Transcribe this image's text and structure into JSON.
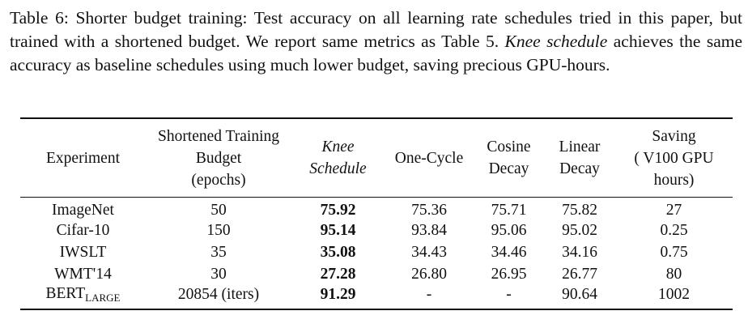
{
  "caption": {
    "label": "Table 6:",
    "before": "Shorter budget training: Test accuracy on all learning rate schedules tried in this paper, but trained with a shortened budget. We report same metrics as Table 5.",
    "emphasis": "Knee schedule",
    "after": "achieves the same accuracy as baseline schedules using much lower budget, saving precious GPU-hours."
  },
  "table": {
    "header": [
      [
        "Experiment"
      ],
      [
        "Shortened Training",
        "Budget",
        "(epochs)"
      ],
      [
        "Knee",
        "Schedule"
      ],
      [
        "One-Cycle"
      ],
      [
        "Cosine",
        "Decay"
      ],
      [
        "Linear",
        "Decay"
      ],
      [
        "Saving",
        "( V100 GPU",
        "hours)"
      ]
    ],
    "rows": [
      [
        "ImageNet",
        "50",
        "75.92",
        "75.36",
        "75.71",
        "75.82",
        "27"
      ],
      [
        "Cifar-10",
        "150",
        "95.14",
        "93.84",
        "95.06",
        "95.02",
        "0.25"
      ],
      [
        "IWSLT",
        "35",
        "35.08",
        "34.43",
        "34.46",
        "34.16",
        "0.75"
      ],
      [
        "WMT'14",
        "30",
        "27.28",
        "26.80",
        "26.95",
        "26.77",
        "80"
      ],
      [
        {
          "base": "BERT",
          "sub": "LARGE"
        },
        "20854 (iters)",
        "91.29",
        "-",
        "-",
        "90.64",
        "1002"
      ]
    ]
  }
}
